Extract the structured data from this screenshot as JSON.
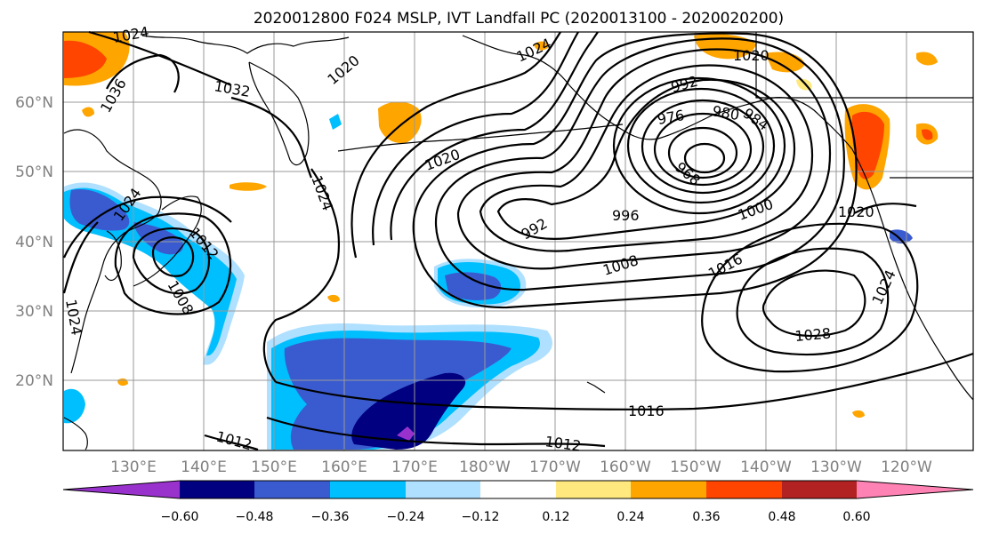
{
  "title": "2020012800 F024 MSLP, IVT Landfall PC (2020013100 - 2020020200)",
  "map": {
    "lat_labels": [
      "60°N",
      "50°N",
      "40°N",
      "30°N",
      "20°N"
    ],
    "lon_labels": [
      "130°E",
      "140°E",
      "150°E",
      "160°E",
      "170°E",
      "180°W",
      "170°W",
      "160°W",
      "150°W",
      "140°W",
      "130°W",
      "120°W"
    ],
    "isobar_labels": [
      "1024",
      "1020",
      "1032",
      "1036",
      "1020",
      "1024",
      "992",
      "976",
      "980",
      "984",
      "968",
      "1000",
      "996",
      "1008",
      "1016",
      "1020",
      "1024",
      "1028",
      "1016",
      "1012",
      "1012",
      "1008",
      "1012",
      "1024",
      "1024",
      "992",
      "1020",
      "1024"
    ],
    "colors": {
      "neg_060": "#9932cc",
      "neg_048": "#000080",
      "neg_036": "#3a5bd0",
      "neg_024": "#00bfff",
      "neg_012": "#b0e0ff",
      "pos_012": "#ffe97f",
      "pos_024": "#ffa500",
      "pos_036": "#ff4500",
      "pos_048": "#b22222",
      "pos_060": "#ff82b4"
    }
  },
  "colorbar": {
    "ticks": [
      "−0.60",
      "−0.48",
      "−0.36",
      "−0.24",
      "−0.12",
      "0.12",
      "0.24",
      "0.36",
      "0.48",
      "0.60"
    ],
    "colors": [
      "#9932cc",
      "#000080",
      "#3a5bd0",
      "#00bfff",
      "#b0e0ff",
      "#ffffff",
      "#ffe97f",
      "#ffa500",
      "#ff4500",
      "#b22222",
      "#ff82b4"
    ]
  }
}
